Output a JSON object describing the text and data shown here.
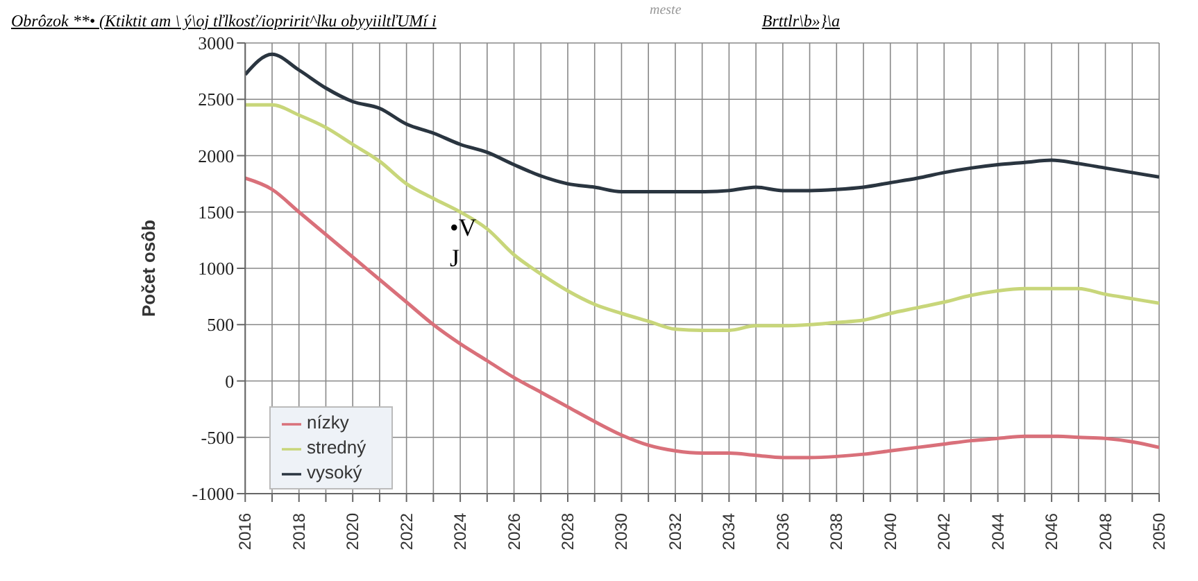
{
  "chart_data": {
    "type": "line",
    "title": "Obrôzok **• (Ktiktit am \\ ý\\oj tľlkosť/iopririt^lku obyyiiltľUMí i",
    "subtitle": "Brttlr\\b»}\\a",
    "ylabel": "Počet osôb",
    "annotations": [
      "meste",
      "•V J"
    ],
    "x": [
      2016,
      2017,
      2018,
      2019,
      2020,
      2021,
      2022,
      2023,
      2024,
      2025,
      2026,
      2027,
      2028,
      2029,
      2030,
      2031,
      2032,
      2033,
      2034,
      2035,
      2036,
      2037,
      2038,
      2039,
      2040,
      2041,
      2042,
      2043,
      2044,
      2045,
      2046,
      2047,
      2048,
      2049,
      2050
    ],
    "series": [
      {
        "name": "nízky",
        "color": "#d9707a",
        "values": [
          1800,
          1700,
          1500,
          1300,
          1100,
          900,
          700,
          500,
          330,
          180,
          30,
          -100,
          -230,
          -360,
          -480,
          -570,
          -620,
          -640,
          -640,
          -660,
          -680,
          -680,
          -670,
          -650,
          -620,
          -590,
          -560,
          -530,
          -510,
          -490,
          -490,
          -500,
          -510,
          -540,
          -590
        ]
      },
      {
        "name": "stredný",
        "color": "#c8d67a",
        "values": [
          2450,
          2450,
          2360,
          2250,
          2100,
          1950,
          1750,
          1620,
          1500,
          1350,
          1120,
          950,
          800,
          680,
          600,
          530,
          460,
          450,
          450,
          490,
          490,
          500,
          520,
          540,
          600,
          650,
          700,
          760,
          800,
          820,
          820,
          820,
          770,
          730,
          690
        ]
      },
      {
        "name": "vysoký",
        "color": "#2a3540",
        "values": [
          2720,
          2900,
          2760,
          2600,
          2480,
          2420,
          2280,
          2200,
          2100,
          2030,
          1920,
          1820,
          1750,
          1720,
          1680,
          1680,
          1680,
          1680,
          1690,
          1720,
          1690,
          1690,
          1700,
          1720,
          1760,
          1800,
          1850,
          1890,
          1920,
          1940,
          1960,
          1930,
          1890,
          1850,
          1810
        ]
      }
    ],
    "xlim": [
      2016,
      2050
    ],
    "xticks": [
      2016,
      {
        "value": 2017,
        "label": null
      },
      2018,
      {
        "value": 2019,
        "label": null
      },
      2020,
      {
        "value": 2021,
        "label": null
      },
      2022,
      {
        "value": 2023,
        "label": null
      },
      2024,
      {
        "value": 2025,
        "label": null
      },
      2026,
      {
        "value": 2027,
        "label": null
      },
      2028,
      {
        "value": 2029,
        "label": null
      },
      2030,
      {
        "value": 2031,
        "label": null
      },
      2032,
      {
        "value": 2033,
        "label": null
      },
      2034,
      {
        "value": 2035,
        "label": null
      },
      2036,
      {
        "value": 2037,
        "label": null
      },
      2038,
      {
        "value": 2039,
        "label": null
      },
      2040,
      {
        "value": 2041,
        "label": null
      },
      2042,
      {
        "value": 2043,
        "label": null
      },
      2044,
      {
        "value": 2045,
        "label": null
      },
      2046,
      {
        "value": 2047,
        "label": null
      },
      2048,
      {
        "value": 2049,
        "label": null
      },
      2050
    ],
    "ylim": [
      -1000,
      3000
    ],
    "yticks": [
      -1000,
      -500,
      0,
      500,
      1000,
      1500,
      2000,
      2500,
      3000
    ],
    "grid": true,
    "legend": "bottom left",
    "marker": "none",
    "line_style": "solid"
  }
}
